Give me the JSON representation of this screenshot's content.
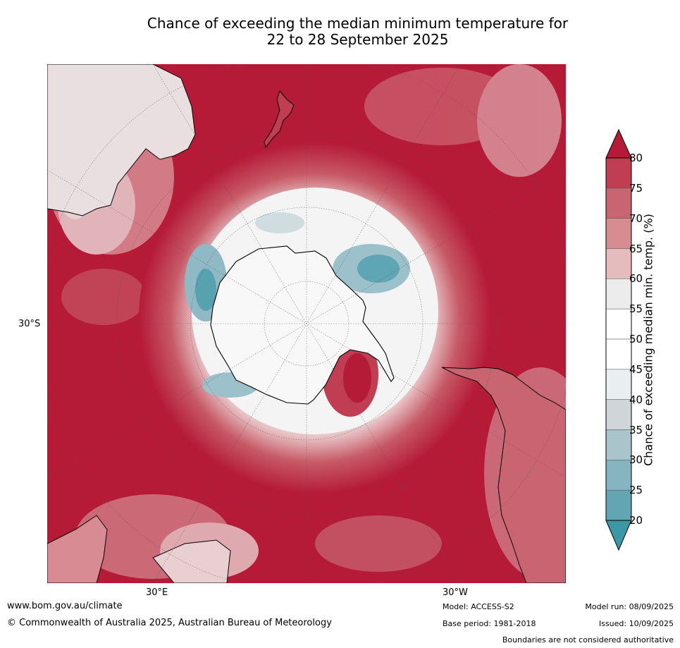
{
  "title": "Chance of exceeding the median minimum temperature for\n22 to 28 September 2025",
  "map": {
    "lat_label": "30°S",
    "lon_labels": [
      "30°E",
      "30°W"
    ]
  },
  "colorbar": {
    "title": "Chance of exceeding median min. temp. (%)",
    "ticks": [
      "80",
      "75",
      "70",
      "65",
      "60",
      "55",
      "50",
      "45",
      "40",
      "35",
      "30",
      "25",
      "20"
    ],
    "colors": [
      "#b51a37",
      "#c13e52",
      "#c96570",
      "#d78c92",
      "#e5bbbe",
      "#ececec",
      "#ffffff",
      "#ffffff",
      "#e9eef1",
      "#cfd6da",
      "#a9c4cb",
      "#86b4c1",
      "#62a6b4",
      "#3b98a7"
    ]
  },
  "footer": {
    "website": "www.bom.gov.au/climate",
    "copyright": "© Commonwealth of Australia 2025, Australian Bureau of Meteorology",
    "model": "Model: ACCESS-S2",
    "base_period": "Base period: 1981-2018",
    "model_run": "Model run: 08/09/2025",
    "issued": "Issued: 10/09/2025",
    "disclaimer": "Boundaries are not considered authoritative"
  }
}
